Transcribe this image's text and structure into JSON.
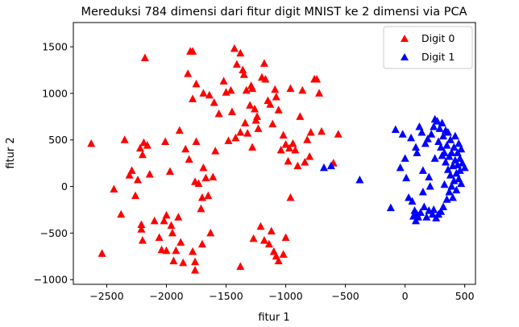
{
  "chart_data": {
    "type": "scatter",
    "title": "Mereduksi 784 dimensi dari fitur digit MNIST ke 2 dimensi via PCA",
    "xlabel": "fitur 1",
    "ylabel": "fitur 2",
    "xlim": [
      -2780,
      590
    ],
    "ylim": [
      -1050,
      1760
    ],
    "xticks": [
      -2500,
      -2000,
      -1500,
      -1000,
      -500,
      0,
      500
    ],
    "yticks": [
      -1000,
      -500,
      0,
      500,
      1000,
      1500
    ],
    "xtick_labels": [
      "−2500",
      "−2000",
      "−1500",
      "−1000",
      "−500",
      "0",
      "500"
    ],
    "ytick_labels": [
      "−1000",
      "−500",
      "0",
      "500",
      "1000",
      "1500"
    ],
    "grid": false,
    "legend_position": "top-right",
    "marker": "triangle",
    "series": [
      {
        "name": "Digit 0",
        "color": "#ff0000",
        "points": [
          [
            -2630,
            460
          ],
          [
            -2540,
            -720
          ],
          [
            -2440,
            -30
          ],
          [
            -2380,
            -300
          ],
          [
            -2350,
            500
          ],
          [
            -2310,
            120
          ],
          [
            -2290,
            170
          ],
          [
            -2260,
            -100
          ],
          [
            -2240,
            70
          ],
          [
            -2220,
            410
          ],
          [
            -2210,
            -460
          ],
          [
            -2210,
            -410
          ],
          [
            -2200,
            340
          ],
          [
            -2200,
            -580
          ],
          [
            -2190,
            470
          ],
          [
            -2180,
            1380
          ],
          [
            -2160,
            440
          ],
          [
            -2140,
            130
          ],
          [
            -2100,
            -370
          ],
          [
            -2060,
            -550
          ],
          [
            -2040,
            -680
          ],
          [
            -2020,
            -370
          ],
          [
            -2010,
            480
          ],
          [
            -2000,
            -310
          ],
          [
            -2000,
            -690
          ],
          [
            -1970,
            160
          ],
          [
            -1960,
            -420
          ],
          [
            -1950,
            -500
          ],
          [
            -1940,
            -800
          ],
          [
            -1920,
            -690
          ],
          [
            -1900,
            -330
          ],
          [
            -1890,
            600
          ],
          [
            -1880,
            -600
          ],
          [
            -1860,
            -820
          ],
          [
            -1840,
            400
          ],
          [
            -1820,
            1210
          ],
          [
            -1810,
            290
          ],
          [
            -1780,
            -700
          ],
          [
            -1760,
            -810
          ],
          [
            -1760,
            50
          ],
          [
            -1750,
            480
          ],
          [
            -1730,
            30
          ],
          [
            -1710,
            -240
          ],
          [
            -1700,
            -620
          ],
          [
            -1690,
            200
          ],
          [
            -1670,
            90
          ],
          [
            -1650,
            -100
          ],
          [
            -1630,
            -500
          ],
          [
            -1610,
            100
          ],
          [
            -1590,
            380
          ],
          [
            -1560,
            780
          ],
          [
            -1520,
            1130
          ],
          [
            -1500,
            1010
          ],
          [
            -1480,
            490
          ],
          [
            -1460,
            1030
          ],
          [
            -1450,
            800
          ],
          [
            -1430,
            1480
          ],
          [
            -1410,
            1310
          ],
          [
            -1380,
            1430
          ],
          [
            -1360,
            1250
          ],
          [
            -1350,
            1200
          ],
          [
            -1330,
            1030
          ],
          [
            -1320,
            570
          ],
          [
            -1300,
            870
          ],
          [
            -1290,
            1080
          ],
          [
            -1280,
            1050
          ],
          [
            -1260,
            830
          ],
          [
            -1250,
            710
          ],
          [
            -1240,
            750
          ],
          [
            -1230,
            620
          ],
          [
            -1200,
            1170
          ],
          [
            -1180,
            1320
          ],
          [
            -1170,
            1150
          ],
          [
            -1150,
            920
          ],
          [
            -1130,
            880
          ],
          [
            -1110,
            670
          ],
          [
            -1090,
            1040
          ],
          [
            -1080,
            960
          ],
          [
            -1060,
            820
          ],
          [
            -1040,
            390
          ],
          [
            -1020,
            550
          ],
          [
            -1000,
            450
          ],
          [
            -980,
            270
          ],
          [
            -970,
            410
          ],
          [
            -960,
            1050
          ],
          [
            -940,
            460
          ],
          [
            -920,
            390
          ],
          [
            -900,
            220
          ],
          [
            -880,
            750
          ],
          [
            -860,
            1030
          ],
          [
            -840,
            260
          ],
          [
            -820,
            500
          ],
          [
            -800,
            320
          ],
          [
            -790,
            580
          ],
          [
            -760,
            1150
          ],
          [
            -740,
            1150
          ],
          [
            -720,
            1000
          ],
          [
            -700,
            590
          ],
          [
            -1700,
            -120
          ],
          [
            -1780,
            940
          ],
          [
            -1800,
            1450
          ],
          [
            -1780,
            1450
          ],
          [
            -1750,
            1100
          ],
          [
            -1690,
            1000
          ],
          [
            -1640,
            980
          ],
          [
            -1600,
            900
          ],
          [
            -1420,
            520
          ],
          [
            -1380,
            580
          ],
          [
            -1340,
            680
          ],
          [
            -1280,
            420
          ],
          [
            -1270,
            -560
          ],
          [
            -1210,
            -430
          ],
          [
            -1180,
            -580
          ],
          [
            -1140,
            -620
          ],
          [
            -1120,
            -480
          ],
          [
            -1100,
            -700
          ],
          [
            -1080,
            -750
          ],
          [
            -1060,
            -800
          ],
          [
            -1020,
            -730
          ],
          [
            -1000,
            -550
          ],
          [
            -960,
            -120
          ],
          [
            -600,
            250
          ],
          [
            -560,
            560
          ],
          [
            -1760,
            -900
          ],
          [
            -1380,
            -860
          ]
        ]
      },
      {
        "name": "Digit 1",
        "color": "#0000ff",
        "points": [
          [
            -680,
            200
          ],
          [
            -620,
            220
          ],
          [
            -380,
            70
          ],
          [
            -120,
            -230
          ],
          [
            -80,
            610
          ],
          [
            -40,
            200
          ],
          [
            -20,
            560
          ],
          [
            0,
            300
          ],
          [
            10,
            90
          ],
          [
            30,
            -120
          ],
          [
            50,
            520
          ],
          [
            60,
            -160
          ],
          [
            70,
            -320
          ],
          [
            80,
            -260
          ],
          [
            90,
            420
          ],
          [
            90,
            -370
          ],
          [
            100,
            -300
          ],
          [
            110,
            -330
          ],
          [
            120,
            640
          ],
          [
            130,
            -280
          ],
          [
            140,
            580
          ],
          [
            150,
            170
          ],
          [
            160,
            -220
          ],
          [
            170,
            460
          ],
          [
            180,
            -330
          ],
          [
            190,
            510
          ],
          [
            200,
            -260
          ],
          [
            210,
            0
          ],
          [
            220,
            560
          ],
          [
            230,
            -300
          ],
          [
            240,
            640
          ],
          [
            240,
            -250
          ],
          [
            250,
            720
          ],
          [
            260,
            -340
          ],
          [
            270,
            700
          ],
          [
            280,
            480
          ],
          [
            280,
            -300
          ],
          [
            290,
            620
          ],
          [
            300,
            420
          ],
          [
            300,
            -270
          ],
          [
            310,
            680
          ],
          [
            310,
            330
          ],
          [
            320,
            -220
          ],
          [
            320,
            540
          ],
          [
            330,
            360
          ],
          [
            330,
            20
          ],
          [
            340,
            600
          ],
          [
            340,
            260
          ],
          [
            350,
            -140
          ],
          [
            350,
            440
          ],
          [
            360,
            180
          ],
          [
            360,
            580
          ],
          [
            370,
            -60
          ],
          [
            370,
            320
          ],
          [
            380,
            500
          ],
          [
            380,
            120
          ],
          [
            390,
            0
          ],
          [
            390,
            360
          ],
          [
            400,
            220
          ],
          [
            400,
            -120
          ],
          [
            410,
            420
          ],
          [
            410,
            60
          ],
          [
            420,
            280
          ],
          [
            420,
            540
          ],
          [
            430,
            140
          ],
          [
            430,
            -40
          ],
          [
            440,
            360
          ],
          [
            440,
            230
          ],
          [
            450,
            460
          ],
          [
            450,
            80
          ],
          [
            460,
            300
          ],
          [
            460,
            170
          ],
          [
            470,
            400
          ],
          [
            470,
            30
          ],
          [
            480,
            250
          ],
          [
            500,
            200
          ],
          [
            250,
            300
          ],
          [
            200,
            100
          ],
          [
            150,
            -60
          ],
          [
            100,
            360
          ]
        ]
      }
    ]
  }
}
